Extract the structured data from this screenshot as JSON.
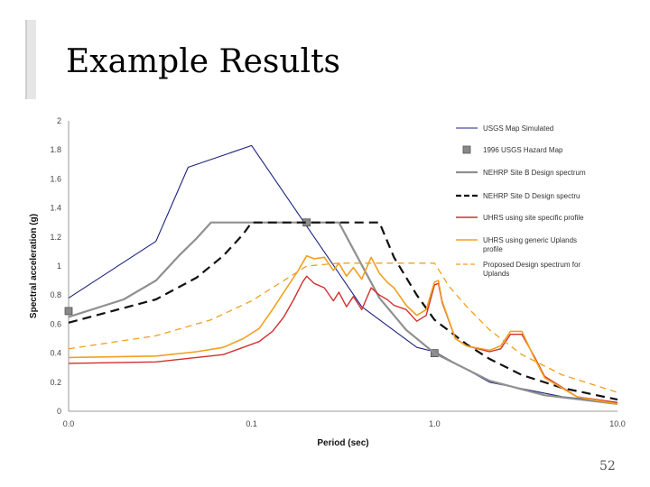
{
  "slide": {
    "title": "Example Results",
    "page_number": "52"
  },
  "chart_data": {
    "type": "line",
    "title": "",
    "xlabel": "Period (sec)",
    "ylabel": "Spectral acceleration (g)",
    "xscale": "log",
    "xlim": [
      0.01,
      10.0
    ],
    "ylim": [
      0,
      2
    ],
    "xticks": [
      {
        "v": 0.01,
        "label": "0.0"
      },
      {
        "v": 0.1,
        "label": "0.1"
      },
      {
        "v": 1.0,
        "label": "1.0"
      },
      {
        "v": 10.0,
        "label": "10.0"
      }
    ],
    "yticks": [
      0,
      0.2,
      0.4,
      0.6,
      0.8,
      1,
      1.2,
      1.4,
      1.6,
      1.8,
      2
    ],
    "ytick_labels": [
      "0",
      "0.2",
      "0.4",
      "0.6",
      "0.8",
      "1",
      "1.2",
      "1.4",
      "1.6",
      "1.8",
      "2"
    ],
    "grid": false,
    "legend_position": "right",
    "series": [
      {
        "name": "USGS Map Simulated",
        "color": "#1a237e",
        "style": "solid",
        "width": 1.1,
        "points": [
          [
            0.01,
            0.78
          ],
          [
            0.03,
            1.17
          ],
          [
            0.045,
            1.68
          ],
          [
            0.1,
            1.83
          ],
          [
            0.4,
            0.72
          ],
          [
            0.8,
            0.44
          ],
          [
            1.0,
            0.41
          ],
          [
            2.0,
            0.2
          ],
          [
            5.0,
            0.1
          ],
          [
            10.0,
            0.06
          ]
        ]
      },
      {
        "name": "1996 USGS Hazard Map",
        "color": "#888888",
        "style": "marker",
        "points": [
          [
            0.01,
            0.69
          ],
          [
            0.2,
            1.3
          ],
          [
            1.0,
            0.4
          ]
        ]
      },
      {
        "name": "NEHRP Site B Design spectrum",
        "color": "#909090",
        "style": "solid",
        "width": 2.2,
        "points": [
          [
            0.01,
            0.65
          ],
          [
            0.02,
            0.77
          ],
          [
            0.03,
            0.9
          ],
          [
            0.04,
            1.07
          ],
          [
            0.05,
            1.19
          ],
          [
            0.06,
            1.3
          ],
          [
            0.2,
            1.3
          ],
          [
            0.3,
            1.3
          ],
          [
            0.5,
            0.78
          ],
          [
            0.7,
            0.56
          ],
          [
            1.0,
            0.4
          ],
          [
            2.0,
            0.21
          ],
          [
            4.0,
            0.11
          ],
          [
            10.0,
            0.05
          ]
        ]
      },
      {
        "name": "NEHRP Site D Design spectru",
        "color": "#111111",
        "style": "dash",
        "width": 2.2,
        "points": [
          [
            0.01,
            0.61
          ],
          [
            0.03,
            0.77
          ],
          [
            0.05,
            0.92
          ],
          [
            0.07,
            1.07
          ],
          [
            0.09,
            1.22
          ],
          [
            0.1,
            1.3
          ],
          [
            0.5,
            1.3
          ],
          [
            0.6,
            1.06
          ],
          [
            0.8,
            0.8
          ],
          [
            1.0,
            0.63
          ],
          [
            1.5,
            0.46
          ],
          [
            2.0,
            0.36
          ],
          [
            3.0,
            0.25
          ],
          [
            5.0,
            0.16
          ],
          [
            10.0,
            0.08
          ]
        ]
      },
      {
        "name": "UHRS using site specific profile",
        "color": "#d32f2f",
        "style": "solid",
        "width": 1.4,
        "points": [
          [
            0.01,
            0.33
          ],
          [
            0.03,
            0.34
          ],
          [
            0.05,
            0.37
          ],
          [
            0.07,
            0.39
          ],
          [
            0.09,
            0.44
          ],
          [
            0.11,
            0.48
          ],
          [
            0.13,
            0.55
          ],
          [
            0.15,
            0.65
          ],
          [
            0.17,
            0.77
          ],
          [
            0.19,
            0.89
          ],
          [
            0.2,
            0.93
          ],
          [
            0.22,
            0.88
          ],
          [
            0.25,
            0.85
          ],
          [
            0.28,
            0.76
          ],
          [
            0.3,
            0.82
          ],
          [
            0.33,
            0.72
          ],
          [
            0.36,
            0.79
          ],
          [
            0.4,
            0.7
          ],
          [
            0.45,
            0.85
          ],
          [
            0.5,
            0.8
          ],
          [
            0.55,
            0.77
          ],
          [
            0.6,
            0.73
          ],
          [
            0.7,
            0.7
          ],
          [
            0.8,
            0.62
          ],
          [
            0.9,
            0.66
          ],
          [
            1.0,
            0.87
          ],
          [
            1.05,
            0.88
          ],
          [
            1.1,
            0.75
          ],
          [
            1.3,
            0.5
          ],
          [
            1.5,
            0.45
          ],
          [
            2.0,
            0.41
          ],
          [
            2.3,
            0.43
          ],
          [
            2.6,
            0.53
          ],
          [
            3.0,
            0.53
          ],
          [
            3.5,
            0.38
          ],
          [
            4.0,
            0.24
          ],
          [
            6.0,
            0.1
          ],
          [
            10.0,
            0.06
          ]
        ]
      },
      {
        "name": "UHRS using generic Uplands profile",
        "color": "#f0a020",
        "style": "solid",
        "width": 1.6,
        "points": [
          [
            0.01,
            0.37
          ],
          [
            0.03,
            0.38
          ],
          [
            0.05,
            0.41
          ],
          [
            0.07,
            0.44
          ],
          [
            0.09,
            0.5
          ],
          [
            0.11,
            0.57
          ],
          [
            0.13,
            0.7
          ],
          [
            0.15,
            0.82
          ],
          [
            0.18,
            0.97
          ],
          [
            0.2,
            1.07
          ],
          [
            0.22,
            1.05
          ],
          [
            0.25,
            1.06
          ],
          [
            0.28,
            0.97
          ],
          [
            0.3,
            1.02
          ],
          [
            0.33,
            0.93
          ],
          [
            0.36,
            0.99
          ],
          [
            0.4,
            0.91
          ],
          [
            0.45,
            1.06
          ],
          [
            0.5,
            0.95
          ],
          [
            0.55,
            0.89
          ],
          [
            0.6,
            0.85
          ],
          [
            0.7,
            0.73
          ],
          [
            0.8,
            0.66
          ],
          [
            0.9,
            0.7
          ],
          [
            1.0,
            0.89
          ],
          [
            1.05,
            0.9
          ],
          [
            1.1,
            0.76
          ],
          [
            1.3,
            0.5
          ],
          [
            1.5,
            0.45
          ],
          [
            2.0,
            0.42
          ],
          [
            2.3,
            0.45
          ],
          [
            2.6,
            0.55
          ],
          [
            3.0,
            0.55
          ],
          [
            3.5,
            0.37
          ],
          [
            4.0,
            0.23
          ],
          [
            6.0,
            0.1
          ],
          [
            10.0,
            0.05
          ]
        ]
      },
      {
        "name": "Proposed Design spectrum for Uplands",
        "color": "#f0a020",
        "style": "dash-light",
        "width": 1.3,
        "points": [
          [
            0.01,
            0.43
          ],
          [
            0.03,
            0.52
          ],
          [
            0.06,
            0.63
          ],
          [
            0.1,
            0.76
          ],
          [
            0.15,
            0.9
          ],
          [
            0.2,
            1.0
          ],
          [
            0.3,
            1.02
          ],
          [
            0.5,
            1.02
          ],
          [
            1.0,
            1.02
          ],
          [
            1.2,
            0.86
          ],
          [
            1.5,
            0.72
          ],
          [
            2.0,
            0.56
          ],
          [
            3.0,
            0.39
          ],
          [
            5.0,
            0.25
          ],
          [
            10.0,
            0.13
          ]
        ]
      }
    ]
  }
}
